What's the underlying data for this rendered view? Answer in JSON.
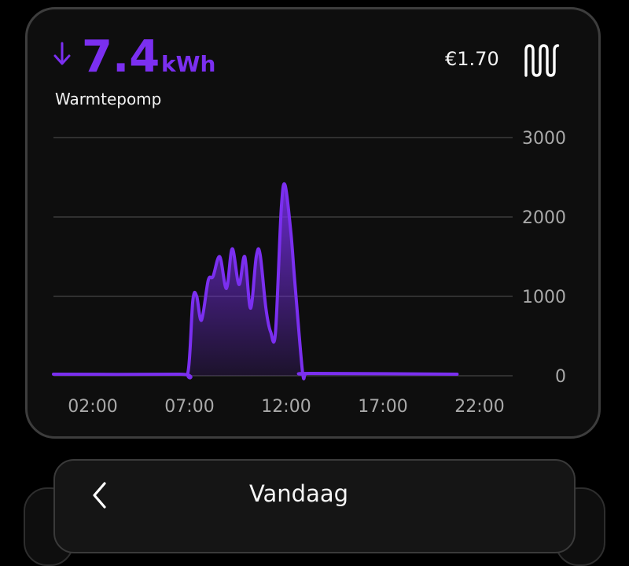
{
  "accent_color": "#7b2ff0",
  "summary": {
    "direction_icon": "arrow-down-icon",
    "energy_value": "7.4",
    "energy_unit": "kWh",
    "device_name": "Warmtepomp",
    "cost": "€1.70",
    "device_icon": "heat-pump-radiator-icon"
  },
  "chart_data": {
    "type": "area",
    "x_ticks": [
      "02:00",
      "07:00",
      "12:00",
      "17:00",
      "22:00"
    ],
    "y_ticks": [
      "0",
      "1000",
      "2000",
      "3000"
    ],
    "ylim": [
      0,
      3000
    ],
    "grid": true,
    "x_unit": "hours",
    "x": [
      0,
      6.5,
      7.0,
      7.25,
      7.45,
      7.7,
      8.05,
      8.3,
      8.65,
      9.0,
      9.3,
      9.65,
      9.95,
      10.25,
      10.55,
      10.75,
      11.05,
      11.3,
      11.55,
      11.85,
      12.05,
      12.35,
      12.55,
      12.95,
      13.1,
      13.4,
      21.0
    ],
    "values": [
      20,
      20,
      50,
      950,
      1000,
      700,
      1200,
      1250,
      1500,
      1100,
      1600,
      1150,
      1500,
      850,
      1500,
      1530,
      850,
      550,
      550,
      2100,
      2400,
      1800,
      1200,
      60,
      20,
      30,
      20
    ]
  },
  "date_nav": {
    "back_icon": "chevron-left-icon",
    "label": "Vandaag"
  }
}
